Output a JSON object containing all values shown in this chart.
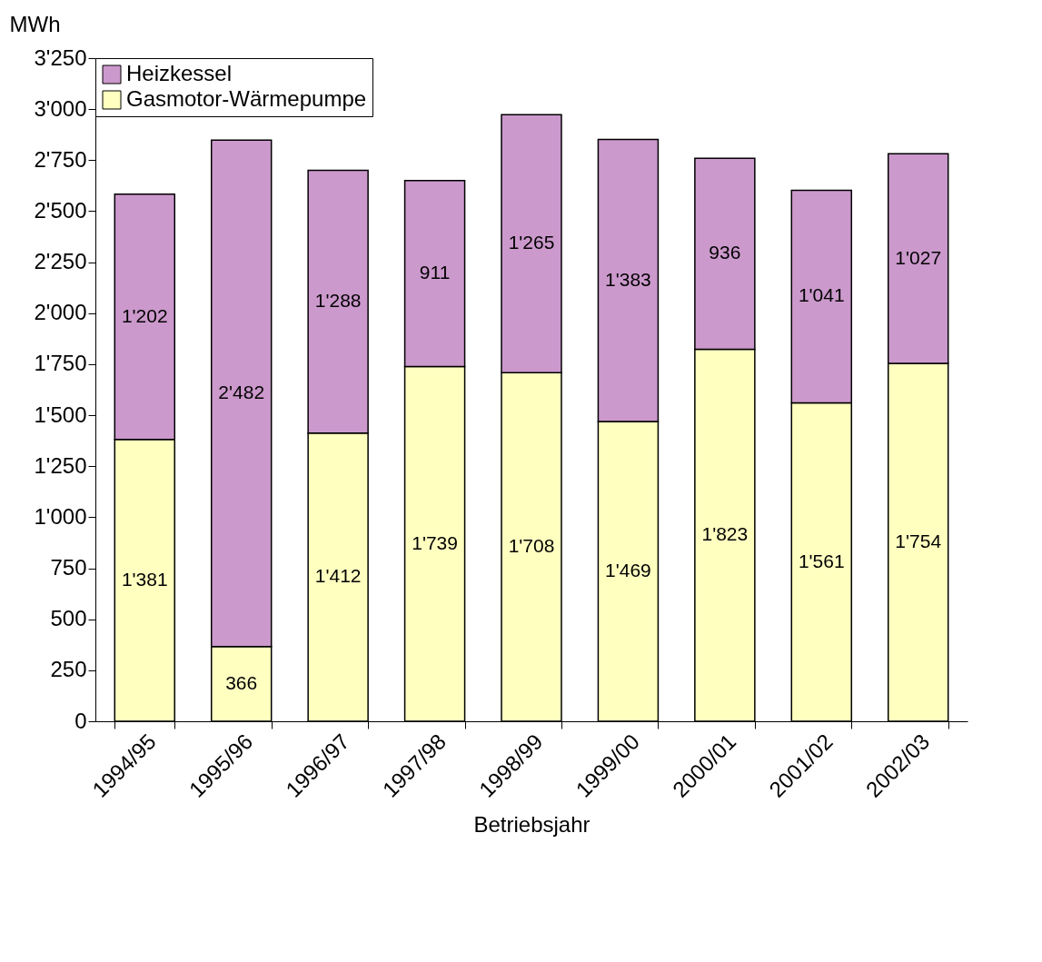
{
  "chart_data": {
    "type": "bar",
    "stacked": true,
    "xlabel": "Betriebsjahr",
    "ylabel": "MWh",
    "categories": [
      "1994/95",
      "1995/96",
      "1996/97",
      "1997/98",
      "1998/99",
      "1999/00",
      "2000/01",
      "2001/02",
      "2002/03"
    ],
    "series": [
      {
        "name": "Gasmotor-Wärmepumpe",
        "color": "#ffffc0",
        "values": [
          1381,
          366,
          1412,
          1739,
          1708,
          1469,
          1823,
          1561,
          1754
        ],
        "value_labels": [
          "1'381",
          "366",
          "1'412",
          "1'739",
          "1'708",
          "1'469",
          "1'823",
          "1'561",
          "1'754"
        ]
      },
      {
        "name": "Heizkessel",
        "color": "#cc99cc",
        "values": [
          1202,
          2482,
          1288,
          911,
          1265,
          1383,
          936,
          1041,
          1027
        ],
        "value_labels": [
          "1'202",
          "2'482",
          "1'288",
          "911",
          "1'265",
          "1'383",
          "936",
          "1'041",
          "1'027"
        ]
      }
    ],
    "ylim": [
      0,
      3250
    ],
    "yticks": [
      0,
      250,
      500,
      750,
      {
        "value": 1000,
        "label": "1'000"
      },
      {
        "value": 1250,
        "label": "1'250"
      },
      {
        "value": 1500,
        "label": "1'500"
      },
      {
        "value": 1750,
        "label": "1'750"
      },
      {
        "value": 2000,
        "label": "2'000"
      },
      {
        "value": 2250,
        "label": "2'250"
      },
      {
        "value": 2500,
        "label": "2'500"
      },
      {
        "value": 2750,
        "label": "2'750"
      },
      {
        "value": 3000,
        "label": "3'000"
      },
      {
        "value": 3250,
        "label": "3'250"
      }
    ],
    "grid": false,
    "legend": "top left"
  }
}
